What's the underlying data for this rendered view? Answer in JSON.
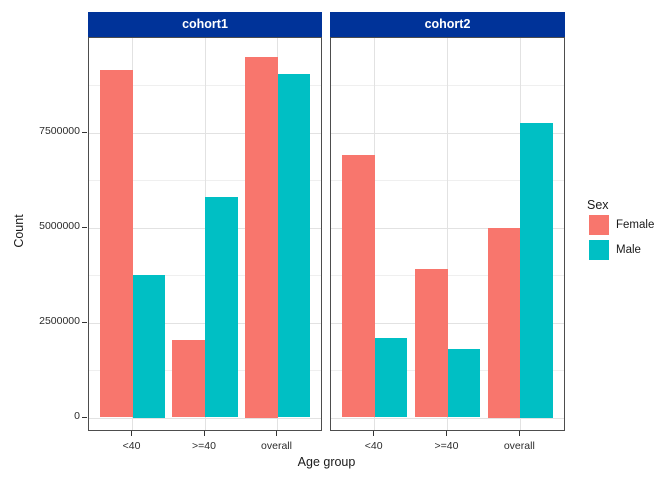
{
  "chart_data": {
    "type": "bar",
    "xlabel": "Age group",
    "ylabel": "Count",
    "categories": [
      "<40",
      ">=40",
      "overall"
    ],
    "facets": [
      {
        "label": "cohort1"
      },
      {
        "label": "cohort2"
      }
    ],
    "series": [
      {
        "name": "Female",
        "color": "#F8766D"
      },
      {
        "name": "Male",
        "color": "#00BFC4"
      }
    ],
    "values": {
      "cohort1": {
        "Female": [
          9150000,
          2050000,
          9500000
        ],
        "Male": [
          3750000,
          5800000,
          9050000
        ]
      },
      "cohort2": {
        "Female": [
          6900000,
          3900000,
          5000000
        ],
        "Male": [
          2100000,
          1800000,
          7750000
        ]
      }
    },
    "yticks": [
      0,
      2500000,
      5000000,
      7500000
    ],
    "y_tick_labels": [
      "0",
      "2500000",
      "5000000",
      "7500000"
    ],
    "yticks_minor": [
      1250000,
      3750000,
      6250000,
      8750000
    ],
    "ylim": [
      0,
      10000000
    ],
    "legend_title": "Sex",
    "legend_position": "right",
    "grid": true
  },
  "colors": {
    "strip_bg": "#003399",
    "strip_text": "#FFFFFF",
    "panel_border": "#4D4D4D",
    "grid_major": "#E2E2E2",
    "grid_minor": "#EFEFEF",
    "female": "#F8766D",
    "male": "#00BFC4"
  }
}
